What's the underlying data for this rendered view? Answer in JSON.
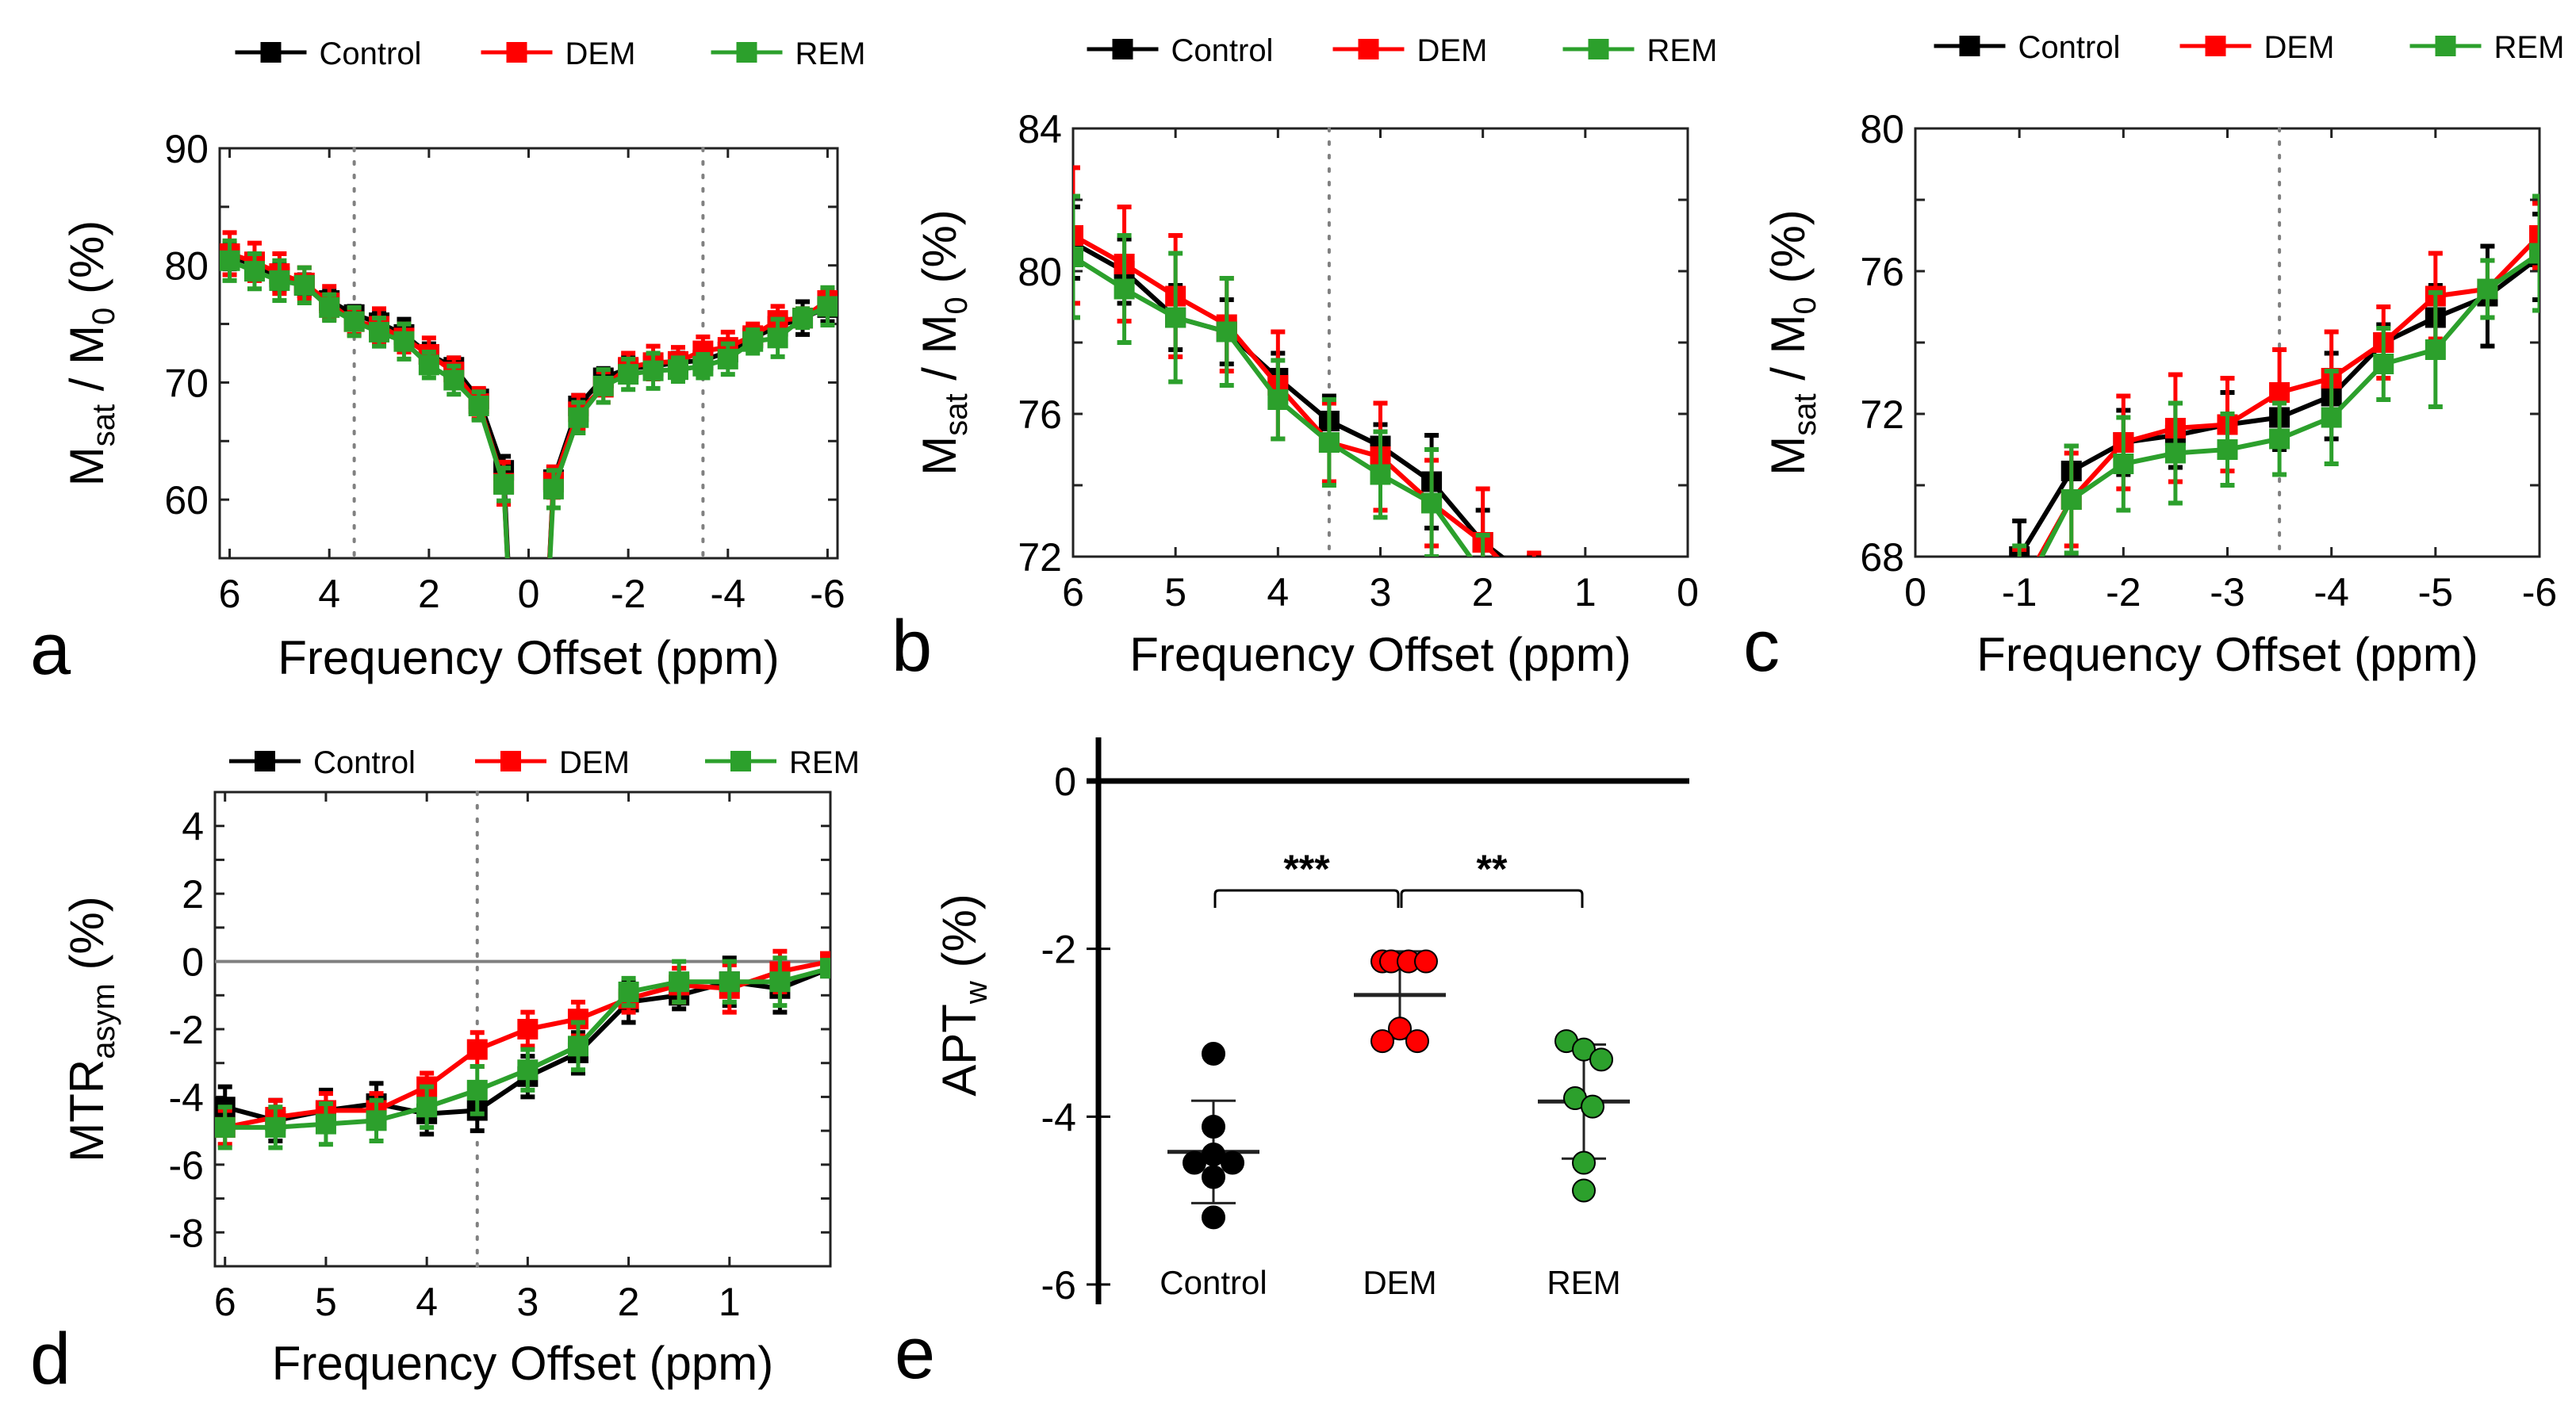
{
  "colors": {
    "Control": "#000000",
    "DEM": "#ff0000",
    "REM": "#2ca02c",
    "ref_line": "#808080"
  },
  "chart_data": [
    {
      "id": "a",
      "panel_label": "a",
      "type": "line",
      "title": "",
      "xlabel": "Frequency Offset (ppm)",
      "ylabel": "M_sat / M_0 (%)",
      "ylabel_parts": {
        "m1": "M",
        "sub1": "sat",
        "mid": " / M",
        "sub2": "0",
        "end": " (%)"
      },
      "xlim": [
        6.2,
        -6.2
      ],
      "ylim": [
        55,
        90
      ],
      "xticks": [
        6,
        4,
        2,
        0,
        -2,
        -4,
        -6
      ],
      "xtick_labels": [
        "6",
        "4",
        "2",
        "0",
        "-2",
        "-4",
        "-6"
      ],
      "yticks": [
        60,
        70,
        80,
        90
      ],
      "ytick_labels": [
        "60",
        "70",
        "80",
        "90"
      ],
      "vlines": [
        3.5,
        -3.5
      ],
      "legend": [
        "Control",
        "DEM",
        "REM"
      ],
      "legend_position": "top",
      "x": [
        6,
        5.5,
        5,
        4.5,
        4,
        3.5,
        3,
        2.5,
        2,
        1.5,
        1,
        0.5,
        0.25,
        -0.25,
        -0.5,
        -1,
        -1.5,
        -2,
        -2.5,
        -3,
        -3.5,
        -4,
        -4.5,
        -5,
        -5.5,
        -6
      ],
      "series": [
        {
          "name": "Control",
          "values": [
            80.8,
            80.0,
            79.0,
            78.3,
            77.0,
            75.8,
            75.1,
            74.1,
            72.4,
            71.3,
            68.6,
            62.5,
            40,
            40,
            61.7,
            68.0,
            70.4,
            71.2,
            71.4,
            71.7,
            71.9,
            72.6,
            73.8,
            74.8,
            75.5,
            76.4
          ],
          "errors": [
            1.1,
            1.0,
            1.1,
            0.9,
            0.8,
            0.7,
            0.8,
            1.3,
            0.9,
            0.8,
            0.8,
            1.2,
            0,
            0,
            1.0,
            0.9,
            0.8,
            0.9,
            0.9,
            0.8,
            0.8,
            1.0,
            0.8,
            1.0,
            1.4,
            1.2
          ]
        },
        {
          "name": "DEM",
          "values": [
            81.0,
            80.3,
            79.3,
            78.5,
            76.8,
            75.2,
            74.8,
            73.8,
            72.4,
            70.9,
            68.2,
            61.4,
            40,
            40,
            61.5,
            67.5,
            69.6,
            71.3,
            71.7,
            71.8,
            72.7,
            73.0,
            74.0,
            75.3,
            75.5,
            77.0
          ],
          "errors": [
            1.8,
            1.6,
            1.7,
            1.3,
            1.4,
            1.1,
            1.5,
            1.2,
            1.4,
            1.2,
            1.3,
            1.8,
            0,
            0,
            1.3,
            1.4,
            1.3,
            1.2,
            1.4,
            1.2,
            1.2,
            1.3,
            1.0,
            1.2,
            0.8,
            0.9
          ]
        },
        {
          "name": "REM",
          "values": [
            80.4,
            79.5,
            78.7,
            78.3,
            76.4,
            75.2,
            74.3,
            73.5,
            71.5,
            70.2,
            68.0,
            61.3,
            40,
            40,
            60.9,
            67.0,
            69.7,
            70.7,
            71.0,
            71.1,
            71.4,
            72.0,
            73.5,
            73.8,
            75.5,
            76.5
          ],
          "errors": [
            1.7,
            1.5,
            1.7,
            1.5,
            1.1,
            1.2,
            1.2,
            1.5,
            1.1,
            1.2,
            1.2,
            1.4,
            0,
            0,
            1.6,
            1.3,
            1.4,
            1.3,
            1.5,
            1.0,
            1.0,
            1.3,
            1.0,
            1.6,
            0.8,
            1.6
          ]
        }
      ]
    },
    {
      "id": "b",
      "panel_label": "b",
      "type": "line",
      "title": "",
      "xlabel": "Frequency Offset (ppm)",
      "ylabel": "M_sat / M_0 (%)",
      "ylabel_parts": {
        "m1": "M",
        "sub1": "sat",
        "mid": " / M",
        "sub2": "0",
        "end": " (%)"
      },
      "xlim": [
        6,
        0
      ],
      "ylim": [
        72,
        84
      ],
      "xticks": [
        6,
        5,
        4,
        3,
        2,
        1,
        0
      ],
      "xtick_labels": [
        "6",
        "5",
        "4",
        "3",
        "2",
        "1",
        "0"
      ],
      "yticks": [
        72,
        76,
        80,
        84
      ],
      "ytick_labels": [
        "72",
        "76",
        "80",
        "84"
      ],
      "vlines": [
        3.5
      ],
      "legend": [
        "Control",
        "DEM",
        "REM"
      ],
      "legend_position": "top",
      "x": [
        6,
        5.5,
        5,
        4.5,
        4,
        3.5,
        3,
        2.5,
        2,
        1.5
      ],
      "series": [
        {
          "name": "Control",
          "values": [
            80.8,
            80.0,
            78.7,
            78.3,
            77.0,
            75.8,
            75.1,
            74.1,
            72.4,
            71.3
          ],
          "errors": [
            1.0,
            0.9,
            0.9,
            0.9,
            0.7,
            0.7,
            0.6,
            1.3,
            0.9,
            0.7
          ]
        },
        {
          "name": "DEM",
          "values": [
            81.0,
            80.2,
            79.3,
            78.5,
            76.8,
            75.2,
            74.8,
            73.5,
            72.4,
            70.9
          ],
          "errors": [
            1.9,
            1.6,
            1.7,
            1.3,
            1.5,
            1.1,
            1.5,
            1.2,
            1.5,
            1.2
          ]
        },
        {
          "name": "REM",
          "values": [
            80.4,
            79.5,
            78.7,
            78.3,
            76.4,
            75.2,
            74.3,
            73.5,
            71.5,
            70.2
          ],
          "errors": [
            1.7,
            1.5,
            1.8,
            1.5,
            1.1,
            1.2,
            1.2,
            1.5,
            1.1,
            1.2
          ]
        }
      ]
    },
    {
      "id": "c",
      "panel_label": "c",
      "type": "line",
      "title": "",
      "xlabel": "Frequency Offset (ppm)",
      "ylabel": "M_sat / M_0 (%)",
      "ylabel_parts": {
        "m1": "M",
        "sub1": "sat",
        "mid": " / M",
        "sub2": "0",
        "end": " (%)"
      },
      "xlim": [
        0,
        -6
      ],
      "ylim": [
        68,
        80
      ],
      "xticks": [
        0,
        -1,
        -2,
        -3,
        -4,
        -5,
        -6
      ],
      "xtick_labels": [
        "0",
        "-1",
        "-2",
        "-3",
        "-4",
        "-5",
        "-6"
      ],
      "yticks": [
        68,
        72,
        76,
        80
      ],
      "ytick_labels": [
        "68",
        "72",
        "76",
        "80"
      ],
      "vlines": [
        -3.5
      ],
      "legend": [
        "Control",
        "DEM",
        "REM"
      ],
      "legend_position": "top",
      "x": [
        -1,
        -1.5,
        -2,
        -2.5,
        -3,
        -3.5,
        -4,
        -4.5,
        -5,
        -5.5,
        -6
      ],
      "series": [
        {
          "name": "Control",
          "values": [
            68.0,
            70.4,
            71.2,
            71.4,
            71.7,
            71.9,
            72.5,
            74.0,
            74.7,
            75.3,
            76.4
          ],
          "errors": [
            1.0,
            0.7,
            0.9,
            0.9,
            0.9,
            0.9,
            1.2,
            0.5,
            0.9,
            1.4,
            1.2
          ]
        },
        {
          "name": "DEM",
          "values": [
            67.0,
            69.6,
            71.2,
            71.6,
            71.7,
            72.6,
            73.0,
            74.0,
            75.3,
            75.5,
            77.0
          ],
          "errors": [
            1.2,
            1.3,
            1.3,
            1.5,
            1.3,
            1.2,
            1.3,
            1.0,
            1.2,
            0.8,
            0.9
          ]
        },
        {
          "name": "REM",
          "values": [
            66.8,
            69.6,
            70.6,
            70.9,
            71.0,
            71.3,
            71.9,
            73.4,
            73.8,
            75.5,
            76.5
          ],
          "errors": [
            1.5,
            1.5,
            1.3,
            1.4,
            1.0,
            1.0,
            1.3,
            1.0,
            1.6,
            0.8,
            1.6
          ]
        }
      ]
    },
    {
      "id": "d",
      "panel_label": "d",
      "type": "line",
      "title": "",
      "xlabel": "Frequency Offset (ppm)",
      "ylabel": "MTR_asym (%)",
      "ylabel_parts": {
        "m1": "MTR",
        "sub1": "asym",
        "mid": "",
        "sub2": "",
        "end": " (%)"
      },
      "xlim": [
        6.1,
        0
      ],
      "ylim": [
        -9,
        5
      ],
      "xticks": [
        6,
        5,
        4,
        3,
        2,
        1
      ],
      "xtick_labels": [
        "6",
        "5",
        "4",
        "3",
        "2",
        "1"
      ],
      "yticks": [
        -8,
        -6,
        -4,
        -2,
        0,
        2,
        4
      ],
      "ytick_labels": [
        "-8",
        "-6",
        "-4",
        "-2",
        "0",
        "2",
        "4"
      ],
      "vlines": [
        3.5
      ],
      "hline": 0,
      "legend": [
        "Control",
        "DEM",
        "REM"
      ],
      "legend_position": "top",
      "x": [
        6,
        5.5,
        5,
        4.5,
        4,
        3.5,
        3,
        2.5,
        2,
        1.5,
        1,
        0.5,
        0
      ],
      "series": [
        {
          "name": "Control",
          "values": [
            -4.3,
            -4.7,
            -4.4,
            -4.2,
            -4.5,
            -4.4,
            -3.4,
            -2.7,
            -1.2,
            -1.0,
            -0.6,
            -0.8,
            -0.2
          ],
          "errors": [
            0.6,
            0.6,
            0.6,
            0.6,
            0.6,
            0.6,
            0.6,
            0.6,
            0.6,
            0.4,
            0.7,
            0.7,
            0
          ]
        },
        {
          "name": "DEM",
          "values": [
            -4.9,
            -4.6,
            -4.4,
            -4.4,
            -3.7,
            -2.6,
            -2.0,
            -1.7,
            -1.1,
            -0.7,
            -0.8,
            -0.3,
            0
          ],
          "errors": [
            0.5,
            0.5,
            0.5,
            0.5,
            0.4,
            0.5,
            0.5,
            0.5,
            0.4,
            0.5,
            0.7,
            0.6,
            0
          ]
        },
        {
          "name": "REM",
          "values": [
            -4.9,
            -4.9,
            -4.8,
            -4.7,
            -4.3,
            -3.8,
            -3.2,
            -2.5,
            -0.9,
            -0.6,
            -0.6,
            -0.6,
            -0.2
          ],
          "errors": [
            0.6,
            0.6,
            0.6,
            0.6,
            0.6,
            0.7,
            0.6,
            0.7,
            0.4,
            0.6,
            0.6,
            0.7,
            0
          ]
        }
      ]
    },
    {
      "id": "e",
      "panel_label": "e",
      "type": "scatter",
      "title": "",
      "xlabel": "",
      "ylabel": "APT_w (%)",
      "ylabel_parts": {
        "m1": "APT",
        "sub1": "w",
        "mid": "",
        "sub2": "",
        "end": " (%)"
      },
      "ylim": [
        -6.2,
        0.4
      ],
      "yticks": [
        0,
        -2,
        -4,
        -6
      ],
      "ytick_labels": [
        "0",
        "-2",
        "-4",
        "-6"
      ],
      "categories": [
        "Control",
        "DEM",
        "REM"
      ],
      "points": [
        {
          "group": "Control",
          "values": [
            -3.25,
            -4.12,
            -4.45,
            -4.55,
            -4.55,
            -4.72,
            -5.2
          ]
        },
        {
          "group": "DEM",
          "values": [
            -2.15,
            -2.15,
            -2.15,
            -2.15,
            -2.95,
            -3.1,
            -3.1
          ]
        },
        {
          "group": "REM",
          "values": [
            -3.1,
            -3.2,
            -3.32,
            -3.78,
            -3.88,
            -4.55,
            -4.88
          ]
        }
      ],
      "mean": [
        -4.42,
        -2.55,
        -3.82
      ],
      "sd": [
        0.61,
        0.52,
        0.68
      ],
      "significance": [
        {
          "from": "Control",
          "to": "DEM",
          "label": "***"
        },
        {
          "from": "DEM",
          "to": "REM",
          "label": "**"
        }
      ],
      "legend": []
    }
  ]
}
